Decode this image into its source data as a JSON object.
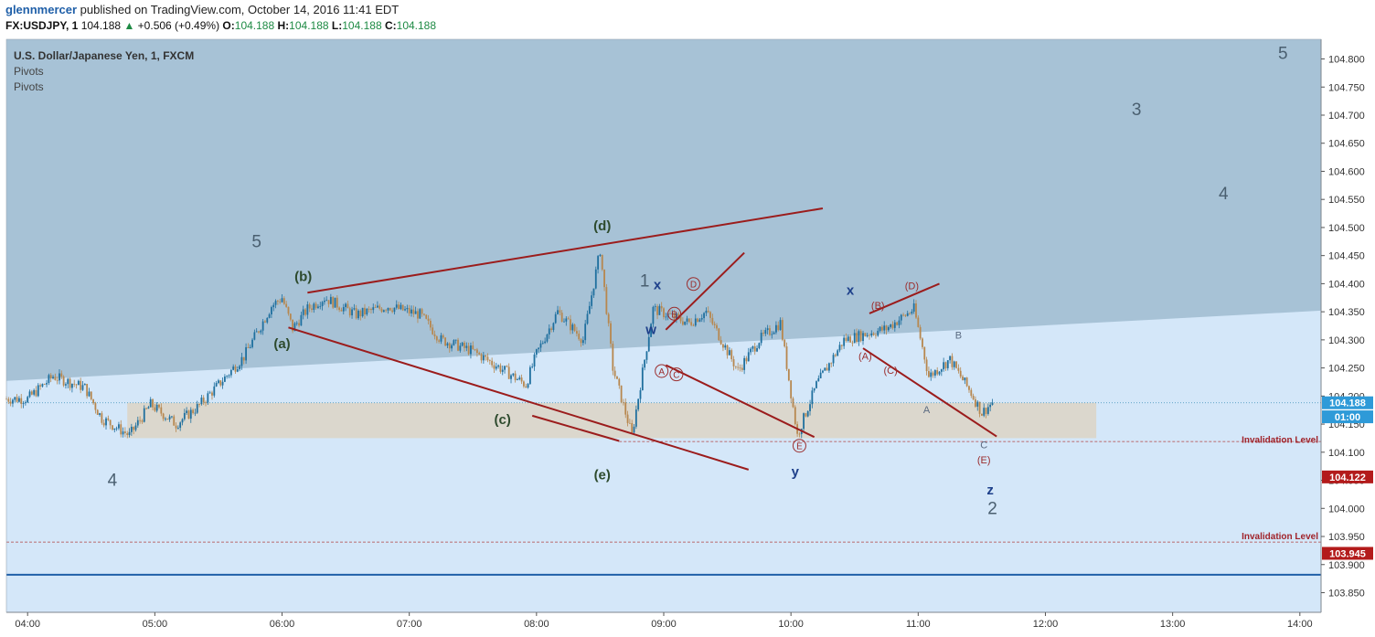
{
  "header": {
    "author": "glennmercer",
    "published_text": "published on TradingView.com, October 14, 2016 11:41 EDT",
    "symbol": "FX:USDJPY, 1",
    "last": "104.188",
    "change": "+0.506 (+0.49%)",
    "o_label": "O:",
    "o_value": "104.188",
    "h_label": "H:",
    "h_value": "104.188",
    "l_label": "L:",
    "l_value": "104.188",
    "c_label": "C:",
    "c_value": "104.188"
  },
  "panel": {
    "symbol_title": "U.S. Dollar/Japanese Yen, 1, FXCM",
    "indicator_1": "Pivots",
    "indicator_2": "Pivots"
  },
  "colors": {
    "pivot_zone": "#a7c2d6",
    "plot_bg": "#d4e7f9",
    "support_zone": "#dbd6ca",
    "trendline": "#9b1c1c",
    "candle_up": "#1f6f9e",
    "candle_down": "#b7874e",
    "label_green": "#2d4a2d",
    "label_blue": "#1d3f8a",
    "label_red": "#9b2d2d",
    "label_gray": "#4a5f70"
  },
  "chart_data": {
    "type": "candlestick",
    "title": "U.S. Dollar/Japanese Yen, 1, FXCM",
    "x_ticks": [
      "04:00",
      "05:00",
      "06:00",
      "07:00",
      "08:00",
      "09:00",
      "10:00",
      "11:00",
      "12:00",
      "13:00",
      "14:00"
    ],
    "y_ticks": [
      "104.800",
      "104.750",
      "104.700",
      "104.650",
      "104.600",
      "104.550",
      "104.500",
      "104.450",
      "104.400",
      "104.350",
      "104.300",
      "104.250",
      "104.200",
      "104.150",
      "104.100",
      "104.050",
      "104.000",
      "103.950",
      "103.900",
      "103.850"
    ],
    "ylim": [
      103.815,
      104.835
    ],
    "price_path": [
      {
        "t": "04:00",
        "p": 104.195
      },
      {
        "t": "04:12",
        "p": 104.235
      },
      {
        "t": "04:27",
        "p": 104.215
      },
      {
        "t": "04:35",
        "p": 104.16
      },
      {
        "t": "04:48",
        "p": 104.13
      },
      {
        "t": "04:58",
        "p": 104.185
      },
      {
        "t": "05:10",
        "p": 104.15
      },
      {
        "t": "05:20",
        "p": 104.18
      },
      {
        "t": "05:30",
        "p": 104.22
      },
      {
        "t": "05:42",
        "p": 104.27
      },
      {
        "t": "05:55",
        "p": 104.36
      },
      {
        "t": "06:00",
        "p": 104.375
      },
      {
        "t": "06:05",
        "p": 104.32
      },
      {
        "t": "06:12",
        "p": 104.355
      },
      {
        "t": "06:20",
        "p": 104.375
      },
      {
        "t": "06:35",
        "p": 104.345
      },
      {
        "t": "06:50",
        "p": 104.36
      },
      {
        "t": "07:05",
        "p": 104.345
      },
      {
        "t": "07:15",
        "p": 104.3
      },
      {
        "t": "07:30",
        "p": 104.28
      },
      {
        "t": "07:45",
        "p": 104.245
      },
      {
        "t": "07:55",
        "p": 104.22
      },
      {
        "t": "08:00",
        "p": 104.275
      },
      {
        "t": "08:10",
        "p": 104.35
      },
      {
        "t": "08:22",
        "p": 104.3
      },
      {
        "t": "08:30",
        "p": 104.46
      },
      {
        "t": "08:36",
        "p": 104.25
      },
      {
        "t": "08:45",
        "p": 104.13
      },
      {
        "t": "08:55",
        "p": 104.355
      },
      {
        "t": "09:05",
        "p": 104.34
      },
      {
        "t": "09:12",
        "p": 104.33
      },
      {
        "t": "09:20",
        "p": 104.35
      },
      {
        "t": "09:35",
        "p": 104.245
      },
      {
        "t": "09:45",
        "p": 104.3
      },
      {
        "t": "09:55",
        "p": 104.33
      },
      {
        "t": "10:03",
        "p": 104.13
      },
      {
        "t": "10:12",
        "p": 104.22
      },
      {
        "t": "10:25",
        "p": 104.3
      },
      {
        "t": "10:45",
        "p": 104.32
      },
      {
        "t": "10:58",
        "p": 104.355
      },
      {
        "t": "11:05",
        "p": 104.235
      },
      {
        "t": "11:15",
        "p": 104.265
      },
      {
        "t": "11:25",
        "p": 104.205
      },
      {
        "t": "11:30",
        "p": 104.17
      },
      {
        "t": "11:35",
        "p": 104.188
      }
    ],
    "last_price": "104.188",
    "last_time_label": "01:00",
    "price_labels": [
      "104.122",
      "103.945"
    ],
    "annotations": [
      {
        "text": "Invalidation Level",
        "y": 104.112
      },
      {
        "text": "Invalidation Level",
        "y": 103.94
      }
    ],
    "wave_labels": {
      "green": [
        "(a)",
        "(b)",
        "(c)",
        "(d)",
        "(e)"
      ],
      "gray": [
        "5",
        "4",
        "1",
        "3",
        "4",
        "5",
        "2"
      ],
      "blue": [
        "x",
        "w",
        "x",
        "y",
        "z"
      ],
      "red_circled": [
        "A",
        "B",
        "C",
        "D",
        "E"
      ],
      "red_paren": [
        "(A)",
        "(B)",
        "(C)",
        "(D)",
        "(E)"
      ],
      "gray_small": [
        "A",
        "B",
        "C"
      ]
    }
  }
}
